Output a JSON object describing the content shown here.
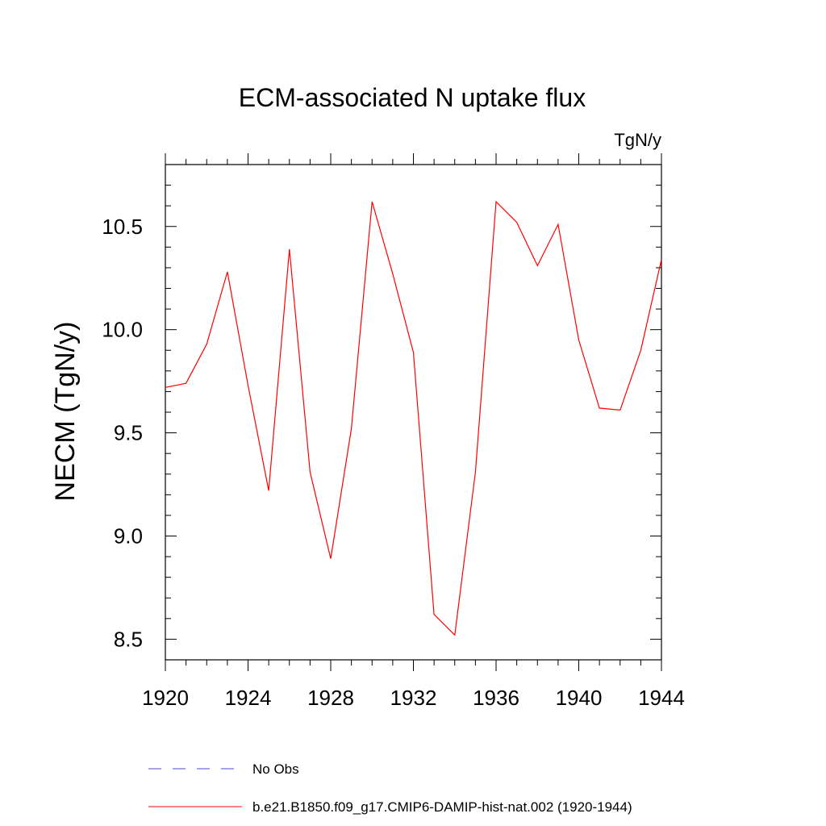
{
  "chart_data": {
    "type": "line",
    "title": "ECM-associated N uptake flux",
    "units_label": "TgN/y",
    "ylabel": "NECM  (TgN/y)",
    "xlabel": "",
    "xlim": [
      1920,
      1944
    ],
    "ylim": [
      8.4,
      10.8
    ],
    "x_ticks": [
      1920,
      1924,
      1928,
      1932,
      1936,
      1940,
      1944
    ],
    "x_tick_labels": [
      "1920",
      "1924",
      "1928",
      "1932",
      "1936",
      "1940",
      "1944"
    ],
    "y_ticks": [
      8.5,
      9.0,
      9.5,
      10.0,
      10.5
    ],
    "y_tick_labels": [
      "8.5",
      "9.0",
      "9.5",
      "10.0",
      "10.5"
    ],
    "series": [
      {
        "name": "b.e21.B1850.f09_g17.CMIP6-DAMIP-hist-nat.002 (1920-1944)",
        "color": "#ff0000",
        "dash": "solid",
        "x": [
          1920,
          1921,
          1922,
          1923,
          1924,
          1925,
          1926,
          1927,
          1928,
          1929,
          1930,
          1931,
          1932,
          1933,
          1934,
          1935,
          1936,
          1937,
          1938,
          1939,
          1940,
          1941,
          1942,
          1943,
          1944
        ],
        "y": [
          9.72,
          9.74,
          9.93,
          10.28,
          9.73,
          9.22,
          10.39,
          9.31,
          8.89,
          9.52,
          10.62,
          10.27,
          9.89,
          8.62,
          8.52,
          9.31,
          10.62,
          10.52,
          10.31,
          10.51,
          9.95,
          9.62,
          9.61,
          9.9,
          10.34
        ]
      }
    ],
    "legend": [
      {
        "label": "No Obs",
        "color": "#4b4bc8",
        "dash": "dashed"
      },
      {
        "label": "b.e21.B1850.f09_g17.CMIP6-DAMIP-hist-nat.002 (1920-1944)",
        "color": "#ff0000",
        "dash": "solid"
      }
    ],
    "legend_position": "bottom",
    "grid": false
  }
}
